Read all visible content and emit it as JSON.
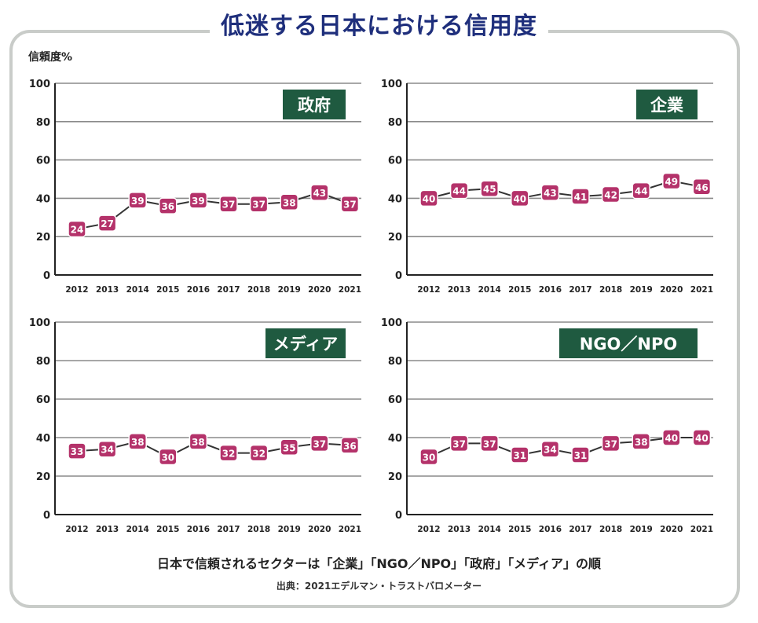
{
  "title": "低迷する日本における信用度",
  "ylabel": "信頼度%",
  "footer_note": "日本で信頼されるセクターは「企業」「NGO／NPO」「政府」「メディア」の順",
  "source": "出典：2021エデルマン・トラストバロメーター",
  "colors": {
    "accent": "#b4326a",
    "label_bg": "#1f5a40",
    "title": "#1f2f7c",
    "grid": "#8a8a8a"
  },
  "chart_data": [
    {
      "type": "line",
      "title": "政府",
      "x": [
        "2012",
        "2013",
        "2014",
        "2015",
        "2016",
        "2017",
        "2018",
        "2019",
        "2020",
        "2021"
      ],
      "values": [
        24,
        27,
        39,
        36,
        39,
        37,
        37,
        38,
        43,
        37
      ],
      "ylim": [
        0,
        100
      ],
      "yticks": [
        0,
        20,
        40,
        60,
        80,
        100
      ],
      "grid": true
    },
    {
      "type": "line",
      "title": "企業",
      "x": [
        "2012",
        "2013",
        "2014",
        "2015",
        "2016",
        "2017",
        "2018",
        "2019",
        "2020",
        "2021"
      ],
      "values": [
        40,
        44,
        45,
        40,
        43,
        41,
        42,
        44,
        49,
        46
      ],
      "ylim": [
        0,
        100
      ],
      "yticks": [
        0,
        20,
        40,
        60,
        80,
        100
      ],
      "grid": true
    },
    {
      "type": "line",
      "title": "メディア",
      "x": [
        "2012",
        "2013",
        "2014",
        "2015",
        "2016",
        "2017",
        "2018",
        "2019",
        "2020",
        "2021"
      ],
      "values": [
        33,
        34,
        38,
        30,
        38,
        32,
        32,
        35,
        37,
        36
      ],
      "ylim": [
        0,
        100
      ],
      "yticks": [
        0,
        20,
        40,
        60,
        80,
        100
      ],
      "grid": true
    },
    {
      "type": "line",
      "title": "NGO／NPO",
      "x": [
        "2012",
        "2013",
        "2014",
        "2015",
        "2016",
        "2017",
        "2018",
        "2019",
        "2020",
        "2021"
      ],
      "values": [
        30,
        37,
        37,
        31,
        34,
        31,
        37,
        38,
        40,
        40
      ],
      "ylim": [
        0,
        100
      ],
      "yticks": [
        0,
        20,
        40,
        60,
        80,
        100
      ],
      "grid": true
    }
  ]
}
